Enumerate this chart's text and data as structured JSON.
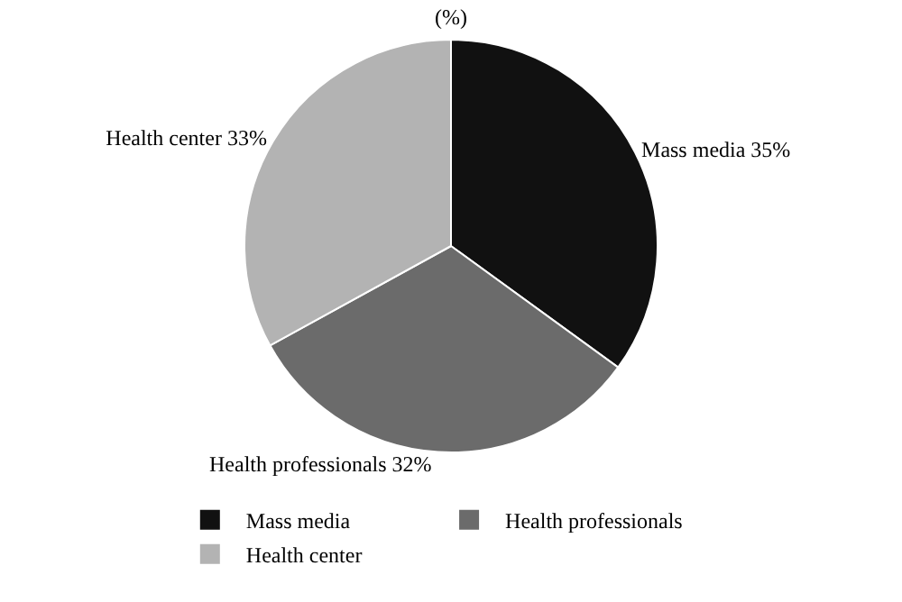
{
  "chart_data": {
    "type": "pie",
    "title": "(%)",
    "categories": [
      "Mass media",
      "Health professionals",
      "Health center"
    ],
    "values": [
      35,
      32,
      33
    ],
    "value_labels": [
      "35%",
      "32%",
      "33%"
    ],
    "colors": [
      "#111111",
      "#6b6b6b",
      "#b3b3b3"
    ],
    "legend": "bottom"
  }
}
